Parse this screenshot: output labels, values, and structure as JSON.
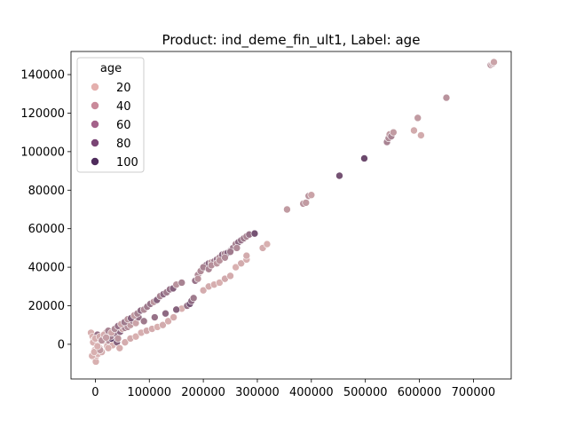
{
  "chart_data": {
    "type": "scatter",
    "title": "Product: ind_deme_fin_ult1, Label: age",
    "xlabel": "",
    "ylabel": "",
    "xlim": [
      -45000,
      770000
    ],
    "ylim": [
      -18000,
      152000
    ],
    "x_ticks": [
      0,
      100000,
      200000,
      300000,
      400000,
      500000,
      600000,
      700000
    ],
    "x_tick_labels": [
      "0",
      "100000",
      "200000",
      "300000",
      "400000",
      "500000",
      "600000",
      "700000"
    ],
    "y_ticks": [
      0,
      20000,
      40000,
      60000,
      80000,
      100000,
      120000,
      140000
    ],
    "y_tick_labels": [
      "0",
      "20000",
      "40000",
      "60000",
      "80000",
      "100000",
      "120000",
      "140000"
    ],
    "grid": false,
    "legend": {
      "title": "age",
      "placement": "top-left",
      "entries": [
        {
          "label": "20",
          "color": "#e4b0ae"
        },
        {
          "label": "40",
          "color": "#c98a9a"
        },
        {
          "label": "60",
          "color": "#a4628a"
        },
        {
          "label": "80",
          "color": "#7a4575"
        },
        {
          "label": "100",
          "color": "#4f2c5c"
        }
      ]
    },
    "color_scale": {
      "min_age": 10,
      "max_age": 105,
      "low_color": "#ecc3bd",
      "high_color": "#4a2a58"
    },
    "series": [
      {
        "x": [
          -8000,
          -5000,
          -3000,
          -1000,
          0,
          1000,
          2000,
          3000,
          4000,
          5000,
          6000,
          8000,
          10000,
          12000,
          15000,
          18000,
          20000,
          22000,
          25000,
          28000,
          30000,
          32000,
          35000,
          38000,
          40000,
          -6000,
          -2000,
          2000,
          6000,
          9000,
          12000,
          16000,
          20000,
          24000,
          28000,
          33000,
          38000,
          42000,
          46000,
          50000,
          55000,
          60000,
          65000,
          70000,
          75000,
          80000,
          -4000,
          0,
          4000,
          8000,
          12000,
          16000,
          20000,
          24000,
          30000,
          36000,
          42000,
          48000,
          54000,
          60000,
          66000,
          72000,
          78000,
          84000,
          90000,
          96000,
          102000,
          108000,
          114000,
          120000,
          126000,
          132000,
          138000,
          144000,
          150000,
          45000,
          55000,
          65000,
          75000,
          85000,
          95000,
          105000,
          115000,
          125000,
          135000,
          145000,
          160000,
          185000,
          190000,
          195000,
          200000,
          205000,
          210000,
          215000,
          220000,
          225000,
          230000,
          235000,
          240000,
          245000,
          250000,
          255000,
          260000,
          265000,
          270000,
          275000,
          280000,
          285000,
          200000,
          210000,
          220000,
          230000,
          240000,
          250000,
          260000,
          270000,
          280000,
          295000,
          160000,
          190000,
          195000,
          200000,
          210000,
          215000,
          225000,
          230000,
          240000,
          250000,
          262000,
          280000,
          310000,
          318000,
          355000,
          385000,
          390000,
          395000,
          400000,
          452000,
          498000,
          540000,
          543000,
          545000,
          548000,
          552000,
          590000,
          597000,
          603000,
          650000,
          732000,
          735000,
          737000,
          738000,
          90000,
          110000,
          130000,
          150000,
          170000,
          175000,
          178000,
          182000
        ],
        "y": [
          6000,
          4000,
          2000,
          -3000,
          -8000,
          -9000,
          -6000,
          3000,
          5000,
          -5000,
          1000,
          -2000,
          2500,
          -4000,
          3500,
          1500,
          4000,
          -1000,
          2000,
          5000,
          3000,
          -500,
          4500,
          6000,
          1000,
          -6000,
          -4000,
          0,
          3000,
          -3000,
          2000,
          5000,
          6000,
          -2000,
          4000,
          7000,
          5500,
          3000,
          6500,
          8000,
          8500,
          9000,
          10000,
          12000,
          11000,
          14000,
          1000,
          3000,
          -1000,
          4000,
          2000,
          5000,
          3500,
          7000,
          6000,
          8000,
          9500,
          10500,
          11500,
          13000,
          13500,
          15000,
          16000,
          17500,
          18000,
          19500,
          21000,
          22000,
          23000,
          25000,
          26000,
          27000,
          28500,
          29000,
          31000,
          -2000,
          1000,
          3000,
          4000,
          6000,
          7000,
          8000,
          9000,
          10000,
          12000,
          14000,
          18500,
          33000,
          36000,
          38000,
          40000,
          41000,
          42000,
          42500,
          43000,
          44000,
          45000,
          46500,
          47000,
          47500,
          48500,
          50000,
          52000,
          53000,
          54000,
          55000,
          56000,
          57000,
          28000,
          30000,
          31000,
          32000,
          34000,
          35500,
          40000,
          42000,
          44000,
          57500,
          32000,
          34000,
          38000,
          40000,
          39000,
          41000,
          42000,
          43500,
          45000,
          48000,
          50000,
          46000,
          50000,
          52000,
          70000,
          73000,
          73500,
          77000,
          77500,
          87500,
          96500,
          105000,
          107000,
          109000,
          108000,
          110000,
          111000,
          117500,
          108500,
          128000,
          145000,
          145500,
          146000,
          146500,
          12000,
          14000,
          16000,
          18000,
          20000,
          21000,
          22500,
          24000
        ],
        "age": [
          22,
          21,
          23,
          20,
          24,
          22,
          21,
          25,
          60,
          21,
          23,
          22,
          35,
          24,
          40,
          22,
          80,
          23,
          45,
          24,
          100,
          22,
          50,
          26,
          70,
          21,
          22,
          23,
          24,
          35,
          25,
          45,
          30,
          22,
          55,
          40,
          60,
          38,
          65,
          28,
          50,
          42,
          35,
          55,
          30,
          60,
          21,
          23,
          22,
          25,
          40,
          24,
          33,
          50,
          28,
          45,
          60,
          30,
          55,
          40,
          70,
          35,
          50,
          65,
          45,
          55,
          60,
          40,
          70,
          50,
          65,
          55,
          60,
          70,
          40,
          23,
          24,
          25,
          22,
          23,
          26,
          24,
          22,
          25,
          23,
          24,
          22,
          60,
          45,
          55,
          50,
          70,
          65,
          40,
          55,
          60,
          45,
          65,
          50,
          70,
          60,
          55,
          50,
          65,
          60,
          55,
          50,
          60,
          24,
          25,
          23,
          22,
          26,
          24,
          21,
          25,
          23,
          80,
          50,
          40,
          45,
          50,
          48,
          42,
          38,
          40,
          45,
          55,
          45,
          25,
          24,
          22,
          35,
          40,
          35,
          40,
          30,
          80,
          85,
          50,
          45,
          35,
          50,
          35,
          25,
          35,
          25,
          40,
          40,
          35,
          40,
          30,
          55,
          60,
          65,
          70,
          60,
          80,
          65,
          55
        ],
        "color": "#a4628a"
      }
    ]
  }
}
